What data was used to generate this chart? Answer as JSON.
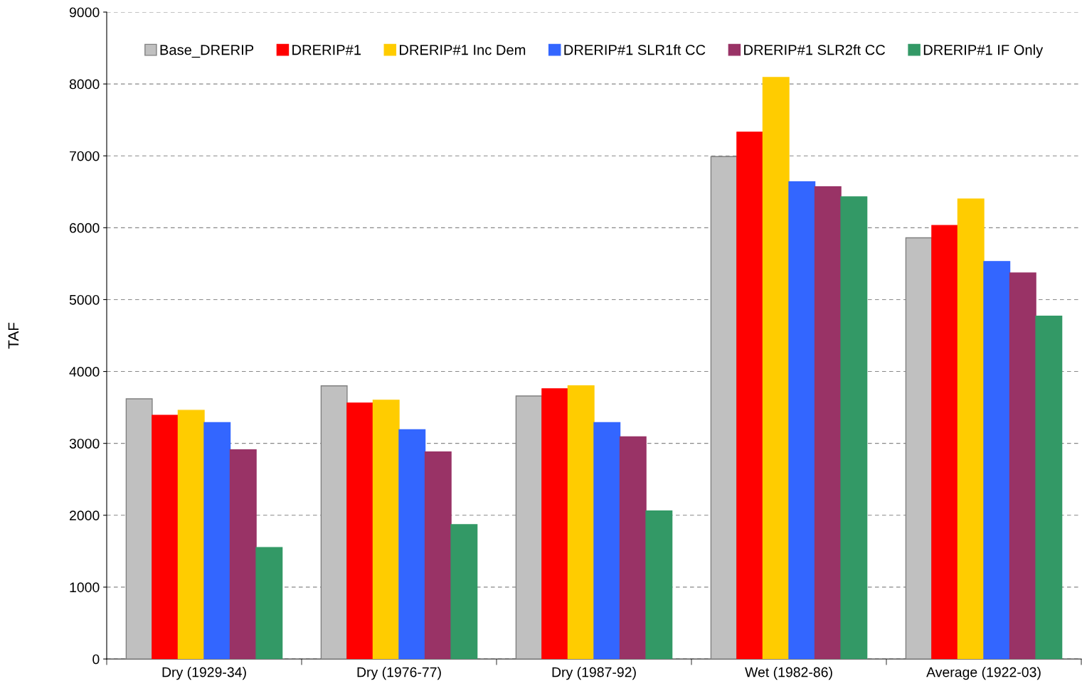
{
  "chart_data": {
    "type": "bar",
    "ylabel": "TAF",
    "categories": [
      "Dry (1929-34)",
      "Dry (1976-77)",
      "Dry (1987-92)",
      "Wet (1982-86)",
      "Average (1922-03)"
    ],
    "series": [
      {
        "name": "Base_DRERIP",
        "color": "#c0c0c0",
        "values": [
          3620,
          3800,
          3660,
          6990,
          5860
        ]
      },
      {
        "name": "DRERIP#1",
        "color": "#ff0000",
        "values": [
          3390,
          3560,
          3760,
          7330,
          6030
        ]
      },
      {
        "name": "DRERIP#1 Inc Dem",
        "color": "#ffcc00",
        "values": [
          3460,
          3600,
          3800,
          8090,
          6400
        ]
      },
      {
        "name": "DRERIP#1 SLR1ft CC",
        "color": "#3366ff",
        "values": [
          3290,
          3190,
          3290,
          6640,
          5530
        ]
      },
      {
        "name": "DRERIP#1 SLR2ft CC",
        "color": "#993366",
        "values": [
          2910,
          2880,
          3090,
          6570,
          5370
        ]
      },
      {
        "name": "DRERIP#1 IF Only",
        "color": "#339966",
        "values": [
          1550,
          1870,
          2060,
          6430,
          4770
        ]
      }
    ],
    "ylim": [
      0,
      9000
    ],
    "yticks": [
      0,
      1000,
      2000,
      3000,
      4000,
      5000,
      6000,
      7000,
      8000,
      9000
    ],
    "grid": "y",
    "legend": "top"
  }
}
